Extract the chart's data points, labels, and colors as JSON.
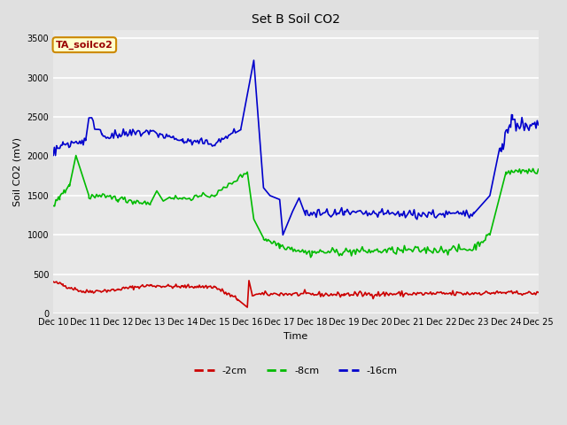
{
  "title": "Set B Soil CO2",
  "ylabel": "Soil CO2 (mV)",
  "xlabel": "Time",
  "ylim": [
    0,
    3600
  ],
  "yticks": [
    0,
    500,
    1000,
    1500,
    2000,
    2500,
    3000,
    3500
  ],
  "xtick_labels": [
    "Dec 10",
    "Dec 11",
    "Dec 12",
    "Dec 13",
    "Dec 14",
    "Dec 15",
    "Dec 16",
    "Dec 17",
    "Dec 18",
    "Dec 19",
    "Dec 20",
    "Dec 21",
    "Dec 22",
    "Dec 23",
    "Dec 24",
    "Dec 25"
  ],
  "figure_bg": "#e0e0e0",
  "plot_bg": "#e8e8e8",
  "grid_color": "#ffffff",
  "legend_label": "TA_soilco2",
  "legend_box_facecolor": "#ffffcc",
  "legend_box_edgecolor": "#cc8800",
  "series_labels": [
    "-2cm",
    "-8cm",
    "-16cm"
  ],
  "series_colors": [
    "#cc0000",
    "#00bb00",
    "#0000cc"
  ],
  "line_width": 1.2,
  "title_fontsize": 10,
  "axis_fontsize": 8,
  "tick_fontsize": 7,
  "legend_fontsize": 8
}
